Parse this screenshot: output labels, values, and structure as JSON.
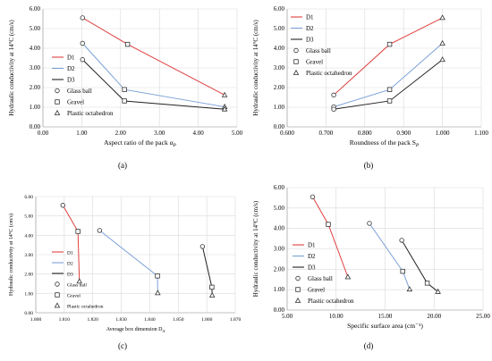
{
  "colors": {
    "D1": "#e04040",
    "D2": "#7ba0d8",
    "D3": "#222222",
    "grid": "#d9d9d9",
    "axis": "#888888"
  },
  "chart_data": [
    {
      "type": "line",
      "caption": "(a)",
      "xlabel": "Aspect ratio of the pack α",
      "xlabel_sub": "P",
      "ylabel": "Hydraulic conductivity at 14°C (cm/s)",
      "xlim": [
        0.0,
        5.0
      ],
      "ylim": [
        0.0,
        6.0
      ],
      "xticks": [
        0.0,
        1.0,
        2.0,
        3.0,
        4.0,
        5.0
      ],
      "xtick_labels": [
        "0.00",
        "1.00",
        "2.00",
        "3.00",
        "4.00",
        "5.00"
      ],
      "yticks": [
        0,
        1,
        2,
        3,
        4,
        5,
        6
      ],
      "ytick_labels": [
        "0.00",
        "1.00",
        "2.00",
        "3.00",
        "4.00",
        "5.00",
        "6.00"
      ],
      "grid": true,
      "legend": [
        "D1",
        "D2",
        "D3",
        "Glass ball",
        "Gravel",
        "Plastic octahedron"
      ],
      "series": [
        {
          "name": "D1",
          "color": "#e04040",
          "x": [
            1.02,
            2.18,
            4.68
          ],
          "y": [
            5.55,
            4.2,
            1.62
          ]
        },
        {
          "name": "D2",
          "color": "#7ba0d8",
          "x": [
            1.02,
            2.1,
            4.68
          ],
          "y": [
            4.25,
            1.9,
            1.02
          ]
        },
        {
          "name": "D3",
          "color": "#222222",
          "x": [
            1.02,
            2.1,
            4.68
          ],
          "y": [
            3.42,
            1.32,
            0.9
          ]
        }
      ]
    },
    {
      "type": "line",
      "caption": "(b)",
      "xlabel": "Roundness of the pack S",
      "xlabel_sub": "P",
      "ylabel": "Hydraulic conductivity at 14°C (cm/s)",
      "xlim": [
        0.6,
        1.1
      ],
      "ylim": [
        0.0,
        6.0
      ],
      "xticks": [
        0.6,
        0.7,
        0.8,
        0.9,
        1.0,
        1.1
      ],
      "xtick_labels": [
        "0.600",
        "0.700",
        "0.800",
        "0.900",
        "1.000",
        "1.100"
      ],
      "yticks": [
        0,
        1,
        2,
        3,
        4,
        5,
        6
      ],
      "ytick_labels": [
        "0.00",
        "1.00",
        "2.00",
        "3.00",
        "4.00",
        "5.00",
        "6.00"
      ],
      "grid": true,
      "legend": [
        "D1",
        "D2",
        "D3",
        "Glass ball",
        "Gravel",
        "Plastic octahedron"
      ],
      "series": [
        {
          "name": "D1",
          "color": "#e04040",
          "x": [
            0.72,
            0.864,
            1.0
          ],
          "y": [
            1.62,
            4.2,
            5.55
          ]
        },
        {
          "name": "D2",
          "color": "#7ba0d8",
          "x": [
            0.72,
            0.864,
            1.0
          ],
          "y": [
            1.02,
            1.9,
            4.25
          ]
        },
        {
          "name": "D3",
          "color": "#222222",
          "x": [
            0.72,
            0.864,
            1.0
          ],
          "y": [
            0.9,
            1.32,
            3.42
          ]
        }
      ]
    },
    {
      "type": "line",
      "caption": "(c)",
      "xlabel": "Average box dimension D",
      "xlabel_sub": "A",
      "ylabel": "Hydraulic conductivity at 14°C (cm/s)",
      "xlim": [
        1.8,
        1.87
      ],
      "ylim": [
        0.0,
        6.0
      ],
      "xticks": [
        1.8,
        1.81,
        1.82,
        1.83,
        1.84,
        1.85,
        1.86,
        1.87
      ],
      "xtick_labels": [
        "1.800",
        "1.810",
        "1.820",
        "1.830",
        "1.840",
        "1.850",
        "1.860",
        "1.870"
      ],
      "yticks": [
        0,
        1,
        2,
        3,
        4,
        5,
        6
      ],
      "ytick_labels": [
        "0.00",
        "1.00",
        "2.00",
        "3.00",
        "4.00",
        "5.00",
        "6.00"
      ],
      "grid": true,
      "legend": [
        "D1",
        "D2",
        "D3",
        "Glass ball",
        "Gravel",
        "Plastic octahedron"
      ],
      "series": [
        {
          "name": "D1",
          "color": "#e04040",
          "x": [
            1.8095,
            1.8148,
            1.8153
          ],
          "y": [
            5.55,
            4.2,
            1.62
          ]
        },
        {
          "name": "D2",
          "color": "#7ba0d8",
          "x": [
            1.8224,
            1.8427,
            1.8428
          ],
          "y": [
            4.25,
            1.9,
            1.02
          ]
        },
        {
          "name": "D3",
          "color": "#222222",
          "x": [
            1.8585,
            1.8618,
            1.8619
          ],
          "y": [
            3.42,
            1.32,
            0.9
          ]
        }
      ]
    },
    {
      "type": "line",
      "caption": "(d)",
      "xlabel": "Specific surface area (cm⁻¹)",
      "xlabel_sub": "",
      "ylabel": "Hydraulic conductivity at 14°C (cm/s)",
      "xlim": [
        5.0,
        25.0
      ],
      "ylim": [
        0.0,
        6.0
      ],
      "xticks": [
        5,
        10,
        15,
        20,
        25
      ],
      "xtick_labels": [
        "5.00",
        "10.00",
        "15.00",
        "20.00",
        "25.00"
      ],
      "yticks": [
        0,
        1,
        2,
        3,
        4,
        5,
        6
      ],
      "ytick_labels": [
        "0.00",
        "1.00",
        "2.00",
        "3.00",
        "4.00",
        "5.00",
        "6.00"
      ],
      "grid": true,
      "legend": [
        "D1",
        "D2",
        "D3",
        "Glass ball",
        "Gravel",
        "Plastic octahedron"
      ],
      "series": [
        {
          "name": "D1",
          "color": "#e04040",
          "x": [
            7.6,
            9.2,
            11.2
          ],
          "y": [
            5.55,
            4.2,
            1.62
          ]
        },
        {
          "name": "D2",
          "color": "#7ba0d8",
          "x": [
            13.4,
            16.8,
            17.5
          ],
          "y": [
            4.25,
            1.9,
            1.02
          ]
        },
        {
          "name": "D3",
          "color": "#222222",
          "x": [
            16.7,
            19.3,
            20.4
          ],
          "y": [
            3.42,
            1.32,
            0.9
          ]
        }
      ]
    }
  ]
}
